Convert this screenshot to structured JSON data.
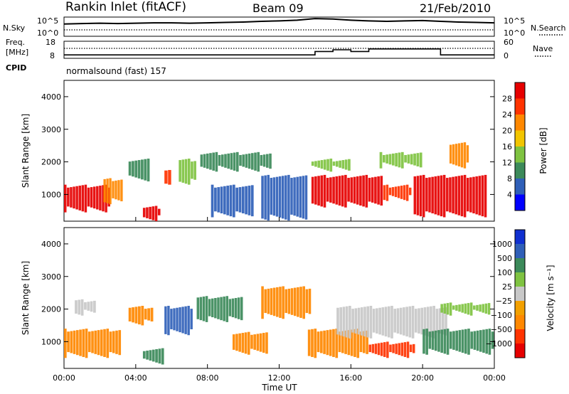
{
  "header": {
    "station": "Rankin Inlet (fitACF)",
    "beam": "Beam 09",
    "date": "21/Feb/2010"
  },
  "nsky_panel": {
    "left_label": "N.Sky",
    "left_ticks": [
      "10^5",
      "10^0"
    ],
    "right_ticks": [
      "10^5",
      "10^0"
    ],
    "right_label": "N.Search"
  },
  "freq_panel": {
    "left_label_line1": "Freq.",
    "left_label_line2": "[MHz]",
    "left_ticks": [
      "18",
      "8"
    ],
    "right_ticks": [
      "60",
      "0"
    ],
    "right_label": "Nave",
    "cpid_label": "CPID",
    "cpid_value": "normalsound (fast) 157"
  },
  "chart_data": [
    {
      "type": "line",
      "name": "nsky",
      "x": [
        "00:00",
        "01:00",
        "02:00",
        "03:00",
        "04:00",
        "05:00",
        "06:00",
        "07:00",
        "08:00",
        "09:00",
        "10:00",
        "11:00",
        "12:00",
        "13:00",
        "14:00",
        "15:00",
        "16:00",
        "17:00",
        "18:00",
        "19:00",
        "20:00",
        "21:00",
        "22:00",
        "23:00",
        "00:00"
      ],
      "y_sky": [
        3.2,
        3.3,
        3.4,
        3.3,
        3.4,
        3.5,
        3.5,
        3.4,
        3.5,
        3.6,
        3.7,
        3.9,
        4.0,
        4.2,
        4.6,
        4.5,
        4.2,
        4.0,
        3.9,
        4.0,
        4.1,
        3.9,
        3.7,
        3.6,
        3.5
      ],
      "ylim": [
        0,
        5
      ]
    },
    {
      "type": "line",
      "name": "frequency_nave",
      "freq_mhz": [
        10.0,
        10.0,
        10.0,
        10.0,
        10.0,
        10.0,
        10.0,
        10.0,
        10.0,
        10.0,
        10.0,
        10.0,
        10.0,
        10.0,
        12.0,
        13.0,
        12.0,
        13.5,
        13.5,
        13.5,
        13.5,
        10.0,
        10.0,
        10.0,
        10.0
      ],
      "ylim": [
        8,
        18
      ],
      "nave_ylim": [
        0,
        60
      ]
    },
    {
      "type": "heatmap",
      "quantity": "Power",
      "ylabel": "Slant Range [km]",
      "yticks": [
        "4000",
        "3000",
        "2000",
        "1000"
      ],
      "ylim": [
        180,
        4500
      ],
      "colorbar_label": "Power [dB]",
      "colorbar_ticks": [
        "28",
        "24",
        "20",
        "16",
        "12",
        "8",
        "4"
      ],
      "colors": [
        "#0000ff",
        "#2f5fb8",
        "#3c8a5a",
        "#7fc341",
        "#f2c500",
        "#ff8800",
        "#ff3300",
        "#e60000"
      ],
      "bands": [
        {
          "t0": 0.0,
          "t1": 2.6,
          "r0": 450,
          "r1": 1300,
          "level": 7
        },
        {
          "t0": 2.2,
          "t1": 3.3,
          "r0": 700,
          "r1": 1500,
          "level": 5
        },
        {
          "t0": 4.4,
          "t1": 5.4,
          "r0": 180,
          "r1": 650,
          "level": 7
        },
        {
          "t0": 3.6,
          "t1": 4.8,
          "r0": 1400,
          "r1": 2100,
          "level": 2
        },
        {
          "t0": 5.6,
          "t1": 6.0,
          "r0": 1300,
          "r1": 1750,
          "level": 6
        },
        {
          "t0": 6.4,
          "t1": 7.4,
          "r0": 1300,
          "r1": 2100,
          "level": 3
        },
        {
          "t0": 7.6,
          "t1": 11.6,
          "r0": 1700,
          "r1": 2300,
          "level": 2
        },
        {
          "t0": 8.2,
          "t1": 10.6,
          "r0": 300,
          "r1": 1300,
          "level": 1
        },
        {
          "t0": 11.0,
          "t1": 13.6,
          "r0": 200,
          "r1": 1600,
          "level": 1
        },
        {
          "t0": 13.8,
          "t1": 17.8,
          "r0": 600,
          "r1": 1600,
          "level": 7
        },
        {
          "t0": 13.8,
          "t1": 16.0,
          "r0": 1700,
          "r1": 2100,
          "level": 3
        },
        {
          "t0": 17.8,
          "t1": 19.4,
          "r0": 800,
          "r1": 1300,
          "level": 6
        },
        {
          "t0": 19.5,
          "t1": 23.6,
          "r0": 300,
          "r1": 1600,
          "level": 7
        },
        {
          "t0": 21.5,
          "t1": 22.6,
          "r0": 1800,
          "r1": 2600,
          "level": 5
        },
        {
          "t0": 17.6,
          "t1": 20.0,
          "r0": 1800,
          "r1": 2300,
          "level": 3
        }
      ]
    },
    {
      "type": "heatmap",
      "quantity": "Velocity",
      "ylabel": "Slant Range [km]",
      "yticks": [
        "4000",
        "3000",
        "2000",
        "1000"
      ],
      "ylim": [
        180,
        4500
      ],
      "colorbar_label": "Velocity [m s⁻¹]",
      "colorbar_ticks": [
        "1000",
        "500",
        "100",
        "25",
        "−25",
        "−100",
        "−500",
        "−1000"
      ],
      "colors": [
        "#e60000",
        "#ff3300",
        "#ff8800",
        "#f2a000",
        "#c8c8c8",
        "#7fc341",
        "#3c8a5a",
        "#2f5fb8",
        "#1030d0"
      ],
      "bands": [
        {
          "t0": 0.0,
          "t1": 3.2,
          "r0": 500,
          "r1": 1400,
          "level": 2
        },
        {
          "t0": 0.6,
          "t1": 1.8,
          "r0": 1800,
          "r1": 2300,
          "level": 4
        },
        {
          "t0": 3.6,
          "t1": 5.0,
          "r0": 1500,
          "r1": 2100,
          "level": 2
        },
        {
          "t0": 4.4,
          "t1": 5.6,
          "r0": 300,
          "r1": 800,
          "level": 6
        },
        {
          "t0": 5.6,
          "t1": 7.2,
          "r0": 1200,
          "r1": 2100,
          "level": 7
        },
        {
          "t0": 7.4,
          "t1": 10.0,
          "r0": 1600,
          "r1": 2400,
          "level": 6
        },
        {
          "t0": 9.4,
          "t1": 11.4,
          "r0": 600,
          "r1": 1300,
          "level": 2
        },
        {
          "t0": 11.0,
          "t1": 13.8,
          "r0": 1700,
          "r1": 2700,
          "level": 2
        },
        {
          "t0": 13.6,
          "t1": 17.0,
          "r0": 500,
          "r1": 1400,
          "level": 2
        },
        {
          "t0": 15.2,
          "t1": 21.4,
          "r0": 1100,
          "r1": 2100,
          "level": 4
        },
        {
          "t0": 17.0,
          "t1": 19.6,
          "r0": 500,
          "r1": 1000,
          "level": 1
        },
        {
          "t0": 20.0,
          "t1": 24.0,
          "r0": 600,
          "r1": 1400,
          "level": 6
        },
        {
          "t0": 21.0,
          "t1": 23.8,
          "r0": 1800,
          "r1": 2200,
          "level": 5
        }
      ]
    }
  ],
  "xaxis": {
    "label": "Time UT",
    "ticks": [
      "00:00",
      "04:00",
      "08:00",
      "12:00",
      "16:00",
      "20:00",
      "00:00"
    ],
    "xlim_hours": [
      0,
      24
    ]
  }
}
